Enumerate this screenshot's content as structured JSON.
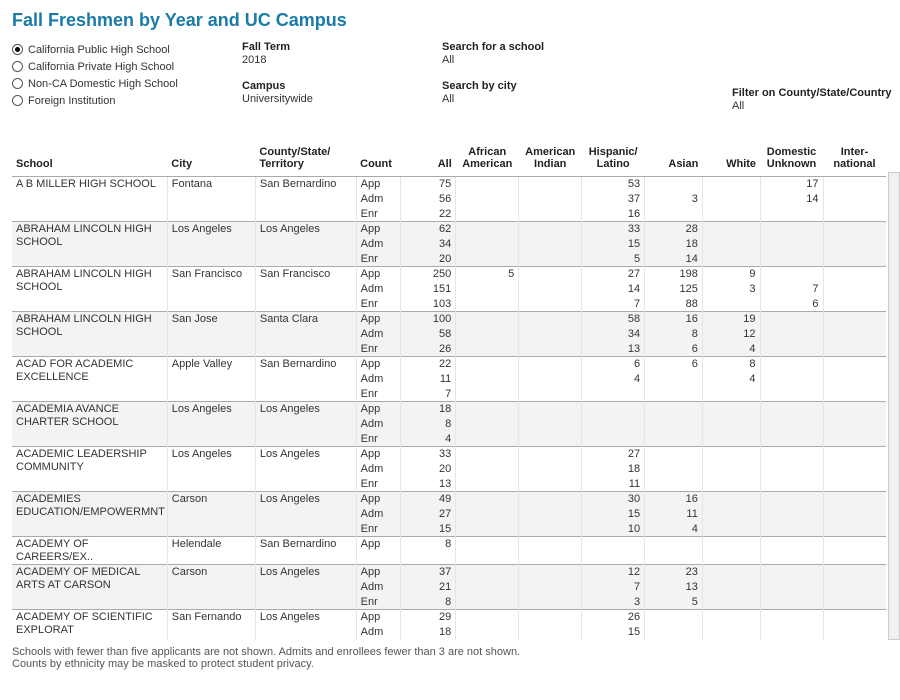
{
  "title": "Fall Freshmen by Year and UC Campus",
  "radios": [
    {
      "label": "California Public High School",
      "selected": true
    },
    {
      "label": "California Private High School",
      "selected": false
    },
    {
      "label": "Non-CA Domestic High School",
      "selected": false
    },
    {
      "label": "Foreign Institution",
      "selected": false
    }
  ],
  "filters": {
    "fall_term": {
      "label": "Fall Term",
      "value": "2018"
    },
    "campus": {
      "label": "Campus",
      "value": "Universitywide"
    },
    "search_school": {
      "label": "Search for a school",
      "value": "All"
    },
    "search_city": {
      "label": "Search by city",
      "value": "All"
    },
    "filter_csc": {
      "label": "Filter on County/State/Country",
      "value": "All"
    }
  },
  "headers": {
    "school": "School",
    "city": "City",
    "cst": "County/State/\nTerritory",
    "count": "Count",
    "all": "All",
    "afam": "African\nAmerican",
    "amind": "American\nIndian",
    "hisp": "Hispanic/\nLatino",
    "asian": "Asian",
    "white": "White",
    "domunk": "Domestic\nUnknown",
    "intl": "Inter-\nnational"
  },
  "count_labels": [
    "App",
    "Adm",
    "Enr"
  ],
  "schools": [
    {
      "school": "A B MILLER HIGH SCHOOL",
      "city": "Fontana",
      "cst": "San Bernardino",
      "rows": [
        {
          "all": "75",
          "afam": "",
          "amind": "",
          "hisp": "53",
          "asian": "",
          "white": "",
          "domunk": "17",
          "intl": ""
        },
        {
          "all": "56",
          "afam": "",
          "amind": "",
          "hisp": "37",
          "asian": "3",
          "white": "",
          "domunk": "14",
          "intl": ""
        },
        {
          "all": "22",
          "afam": "",
          "amind": "",
          "hisp": "16",
          "asian": "",
          "white": "",
          "domunk": "",
          "intl": ""
        }
      ]
    },
    {
      "school": "ABRAHAM LINCOLN HIGH SCHOOL",
      "city": "Los Angeles",
      "cst": "Los Angeles",
      "striped": true,
      "rows": [
        {
          "all": "62",
          "afam": "",
          "amind": "",
          "hisp": "33",
          "asian": "28",
          "white": "",
          "domunk": "",
          "intl": ""
        },
        {
          "all": "34",
          "afam": "",
          "amind": "",
          "hisp": "15",
          "asian": "18",
          "white": "",
          "domunk": "",
          "intl": ""
        },
        {
          "all": "20",
          "afam": "",
          "amind": "",
          "hisp": "5",
          "asian": "14",
          "white": "",
          "domunk": "",
          "intl": ""
        }
      ]
    },
    {
      "school": "ABRAHAM LINCOLN HIGH SCHOOL",
      "city": "San Francisco",
      "cst": "San Francisco",
      "rows": [
        {
          "all": "250",
          "afam": "5",
          "amind": "",
          "hisp": "27",
          "asian": "198",
          "white": "9",
          "domunk": "",
          "intl": ""
        },
        {
          "all": "151",
          "afam": "",
          "amind": "",
          "hisp": "14",
          "asian": "125",
          "white": "3",
          "domunk": "7",
          "intl": ""
        },
        {
          "all": "103",
          "afam": "",
          "amind": "",
          "hisp": "7",
          "asian": "88",
          "white": "",
          "domunk": "6",
          "intl": ""
        }
      ]
    },
    {
      "school": "ABRAHAM LINCOLN HIGH SCHOOL",
      "city": "San Jose",
      "cst": "Santa Clara",
      "striped": true,
      "rows": [
        {
          "all": "100",
          "afam": "",
          "amind": "",
          "hisp": "58",
          "asian": "16",
          "white": "19",
          "domunk": "",
          "intl": ""
        },
        {
          "all": "58",
          "afam": "",
          "amind": "",
          "hisp": "34",
          "asian": "8",
          "white": "12",
          "domunk": "",
          "intl": ""
        },
        {
          "all": "26",
          "afam": "",
          "amind": "",
          "hisp": "13",
          "asian": "6",
          "white": "4",
          "domunk": "",
          "intl": ""
        }
      ]
    },
    {
      "school": "ACAD FOR ACADEMIC EXCELLENCE",
      "city": "Apple Valley",
      "cst": "San Bernardino",
      "rows": [
        {
          "all": "22",
          "afam": "",
          "amind": "",
          "hisp": "6",
          "asian": "6",
          "white": "8",
          "domunk": "",
          "intl": ""
        },
        {
          "all": "11",
          "afam": "",
          "amind": "",
          "hisp": "4",
          "asian": "",
          "white": "4",
          "domunk": "",
          "intl": ""
        },
        {
          "all": "7",
          "afam": "",
          "amind": "",
          "hisp": "",
          "asian": "",
          "white": "",
          "domunk": "",
          "intl": ""
        }
      ]
    },
    {
      "school": "ACADEMIA AVANCE CHARTER SCHOOL",
      "city": "Los Angeles",
      "cst": "Los Angeles",
      "striped": true,
      "rows": [
        {
          "all": "18",
          "afam": "",
          "amind": "",
          "hisp": "",
          "asian": "",
          "white": "",
          "domunk": "",
          "intl": ""
        },
        {
          "all": "8",
          "afam": "",
          "amind": "",
          "hisp": "",
          "asian": "",
          "white": "",
          "domunk": "",
          "intl": ""
        },
        {
          "all": "4",
          "afam": "",
          "amind": "",
          "hisp": "",
          "asian": "",
          "white": "",
          "domunk": "",
          "intl": ""
        }
      ]
    },
    {
      "school": "ACADEMIC LEADERSHIP COMMUNITY",
      "city": "Los Angeles",
      "cst": "Los Angeles",
      "rows": [
        {
          "all": "33",
          "afam": "",
          "amind": "",
          "hisp": "27",
          "asian": "",
          "white": "",
          "domunk": "",
          "intl": ""
        },
        {
          "all": "20",
          "afam": "",
          "amind": "",
          "hisp": "18",
          "asian": "",
          "white": "",
          "domunk": "",
          "intl": ""
        },
        {
          "all": "13",
          "afam": "",
          "amind": "",
          "hisp": "11",
          "asian": "",
          "white": "",
          "domunk": "",
          "intl": ""
        }
      ]
    },
    {
      "school": "ACADEMIES EDUCATION/EMPOWERMNT",
      "city": "Carson",
      "cst": "Los Angeles",
      "striped": true,
      "rows": [
        {
          "all": "49",
          "afam": "",
          "amind": "",
          "hisp": "30",
          "asian": "16",
          "white": "",
          "domunk": "",
          "intl": ""
        },
        {
          "all": "27",
          "afam": "",
          "amind": "",
          "hisp": "15",
          "asian": "11",
          "white": "",
          "domunk": "",
          "intl": ""
        },
        {
          "all": "15",
          "afam": "",
          "amind": "",
          "hisp": "10",
          "asian": "4",
          "white": "",
          "domunk": "",
          "intl": ""
        }
      ]
    },
    {
      "school": "ACADEMY OF CAREERS/EX..",
      "city": "Helendale",
      "cst": "San Bernardino",
      "rows": [
        {
          "all": "8",
          "afam": "",
          "amind": "",
          "hisp": "",
          "asian": "",
          "white": "",
          "domunk": "",
          "intl": ""
        }
      ]
    },
    {
      "school": "ACADEMY OF MEDICAL ARTS AT CARSON",
      "city": "Carson",
      "cst": "Los Angeles",
      "striped": true,
      "rows": [
        {
          "all": "37",
          "afam": "",
          "amind": "",
          "hisp": "12",
          "asian": "23",
          "white": "",
          "domunk": "",
          "intl": ""
        },
        {
          "all": "21",
          "afam": "",
          "amind": "",
          "hisp": "7",
          "asian": "13",
          "white": "",
          "domunk": "",
          "intl": ""
        },
        {
          "all": "8",
          "afam": "",
          "amind": "",
          "hisp": "3",
          "asian": "5",
          "white": "",
          "domunk": "",
          "intl": ""
        }
      ]
    },
    {
      "school": "ACADEMY OF SCIENTIFIC EXPLORAT",
      "city": "San Fernando",
      "cst": "Los Angeles",
      "rows": [
        {
          "all": "29",
          "afam": "",
          "amind": "",
          "hisp": "26",
          "asian": "",
          "white": "",
          "domunk": "",
          "intl": ""
        },
        {
          "all": "18",
          "afam": "",
          "amind": "",
          "hisp": "15",
          "asian": "",
          "white": "",
          "domunk": "",
          "intl": ""
        }
      ]
    }
  ],
  "footnote": "Schools with fewer than five applicants are not shown. Admits and enrollees fewer than 3 are not shown.\nCounts by ethnicity may be masked to protect student privacy."
}
